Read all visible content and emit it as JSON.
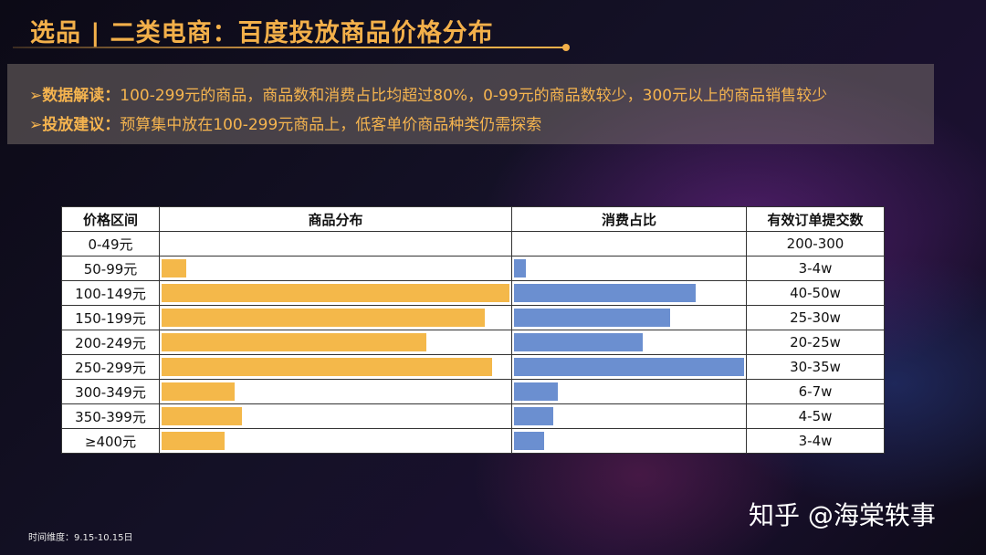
{
  "title": "选品 | 二类电商：百度投放商品价格分布",
  "insight": {
    "lead1": "➢数据解读：",
    "text1": "100-299元的商品，商品数和消费占比均超过80%，0-99元的商品数较少，300元以上的商品销售较少",
    "lead2": "➢投放建议：",
    "text2": "预算集中放在100-299元商品上，低客单价商品种类仍需探索"
  },
  "table": {
    "headers": [
      "价格区间",
      "商品分布",
      "消费占比",
      "有效订单提交数"
    ],
    "rows": [
      {
        "range": "0-49元",
        "goods": 0,
        "spend": 0,
        "orders": "200-300"
      },
      {
        "range": "50-99元",
        "goods": 0.07,
        "spend": 0.05,
        "orders": "3-4w"
      },
      {
        "range": "100-149元",
        "goods": 1.0,
        "spend": 0.79,
        "orders": "40-50w"
      },
      {
        "range": "150-199元",
        "goods": 0.93,
        "spend": 0.68,
        "orders": "25-30w"
      },
      {
        "range": "200-249元",
        "goods": 0.76,
        "spend": 0.56,
        "orders": "20-25w"
      },
      {
        "range": "250-299元",
        "goods": 0.95,
        "spend": 1.0,
        "orders": "30-35w"
      },
      {
        "range": "300-349元",
        "goods": 0.21,
        "spend": 0.19,
        "orders": "6-7w"
      },
      {
        "range": "350-399元",
        "goods": 0.23,
        "spend": 0.17,
        "orders": "4-5w"
      },
      {
        "range": "≥400元",
        "goods": 0.18,
        "spend": 0.13,
        "orders": "3-4w"
      }
    ],
    "colors": {
      "goods": "#f4b84a",
      "spend": "#6b8fd0"
    }
  },
  "footnote": "时间维度：9.15-10.15日",
  "watermark": "知乎 @海棠轶事"
}
